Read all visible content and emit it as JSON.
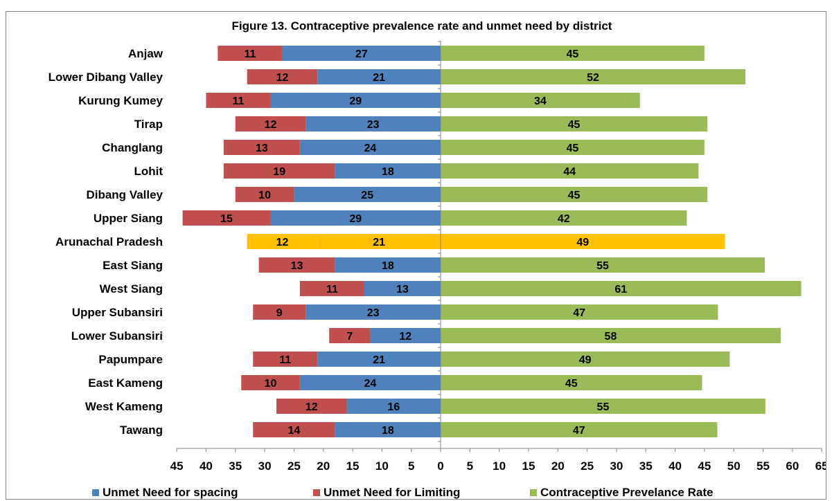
{
  "chart_data": {
    "type": "bar",
    "orientation": "horizontal-diverging",
    "title": "Figure 13. Contraceptive prevalence rate and unmet need by district",
    "categories": [
      "Anjaw",
      "Lower Dibang Valley",
      "Kurung Kumey",
      "Tirap",
      "Changlang",
      "Lohit",
      "Dibang Valley",
      "Upper Siang",
      "Arunachal Pradesh",
      "East Siang",
      "West Siang",
      "Upper Subansiri",
      "Lower Subansiri",
      "Papumpare",
      "East Kameng",
      "West Kameng",
      "Tawang"
    ],
    "series": [
      {
        "name": "Unmet Need for spacing",
        "color": "#4f81bd",
        "direction": "left",
        "values": [
          27,
          21,
          29,
          23,
          24,
          18,
          25,
          29,
          21,
          18,
          13,
          23,
          12,
          21,
          24,
          16,
          18
        ],
        "labels": [
          "27",
          "21",
          "29",
          "23",
          "24",
          "18",
          "25",
          "29",
          "21",
          "18",
          "13",
          "23",
          "12",
          "21",
          "24",
          "16",
          "18"
        ]
      },
      {
        "name": "Unmet Need for Limiting",
        "color": "#c0504d",
        "direction": "left",
        "values": [
          11,
          12,
          11,
          12,
          13,
          19,
          10,
          15,
          12,
          13,
          11,
          9,
          7,
          11,
          10,
          12,
          14
        ],
        "labels": [
          "11",
          "12",
          "11",
          "12",
          "13",
          "19",
          "10",
          "15",
          "12",
          "13",
          "11",
          "9",
          "7",
          "11",
          "10",
          "12",
          "14"
        ]
      },
      {
        "name": "Contraceptive Prevelance Rate",
        "color": "#9bbb59",
        "direction": "right",
        "values": [
          45,
          52,
          34,
          45.5,
          45,
          44,
          45.5,
          42,
          48.5,
          55.3,
          61.5,
          47.3,
          58,
          49.3,
          44.6,
          55.4,
          47.2
        ],
        "labels": [
          "45",
          "52",
          "34",
          "45",
          "45",
          "44",
          "45",
          "42",
          "49",
          "55",
          "61",
          "47",
          "58",
          "49",
          "45",
          "55",
          "47"
        ]
      }
    ],
    "highlight": {
      "category": "Arunachal Pradesh",
      "color": "#ffc000"
    },
    "x_ticks": [
      "45",
      "40",
      "35",
      "30",
      "25",
      "20",
      "15",
      "10",
      "5",
      "0",
      "5",
      "10",
      "15",
      "20",
      "25",
      "30",
      "35",
      "40",
      "45",
      "50",
      "55",
      "60",
      "65"
    ],
    "xlim": [
      -45,
      65
    ],
    "grid": false,
    "legend_position": "bottom"
  }
}
